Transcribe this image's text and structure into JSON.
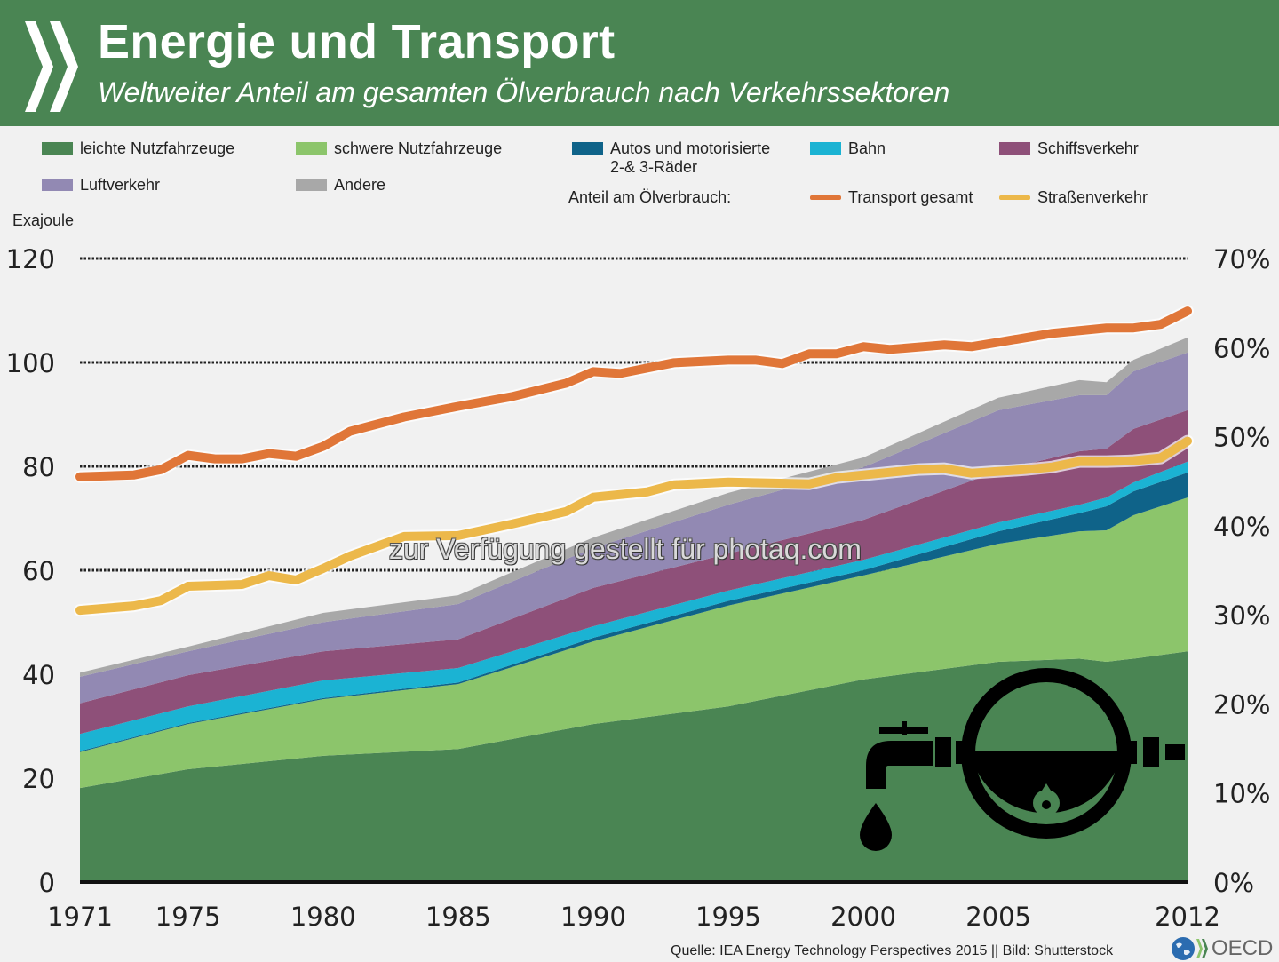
{
  "header": {
    "title": "Energie und Transport",
    "subtitle": "Weltweiter Anteil am gesamten Ölverbrauch nach Verkehrssektoren"
  },
  "legend": {
    "areas": [
      {
        "label": "leichte Nutzfahrzeuge",
        "color": "#4a8553"
      },
      {
        "label": "schwere Nutzfahrzeuge",
        "color": "#8cc56b"
      },
      {
        "label": "Autos und motorisierte",
        "label2": "2-& 3-Räder",
        "color": "#0f6389"
      },
      {
        "label": "Bahn",
        "color": "#1bb3d3"
      },
      {
        "label": "Schiffsverkehr",
        "color": "#8e5079"
      },
      {
        "label": "Luftverkehr",
        "color": "#9289b3"
      },
      {
        "label": "Andere",
        "color": "#a8a8a8"
      }
    ],
    "share_note": "Anteil am Ölverbrauch:",
    "lines": [
      {
        "label": "Transport gesamt",
        "color": "#e07638"
      },
      {
        "label": "Straßenverkehr",
        "color": "#ecb84a"
      }
    ]
  },
  "axis_title_left": "Exajoule",
  "watermark": "zur Verfügung gestellt für photaq.com",
  "footer": {
    "source": "Quelle: IEA Energy Technology Perspectives 2015 || Bild: Shutterstock",
    "logo_text": "OECD"
  },
  "chart_data": {
    "type": "area",
    "stacked": true,
    "title": "Energie und Transport",
    "subtitle": "Weltweiter Anteil am gesamten Ölverbrauch nach Verkehrssektoren",
    "xlabel": "",
    "ylabel": "Exajoule",
    "ylim": [
      0,
      120
    ],
    "y_ticks": [
      0,
      20,
      40,
      60,
      80,
      100,
      120
    ],
    "y2label": "Anteil am Ölverbrauch",
    "y2lim": [
      0,
      70
    ],
    "y2_ticks": [
      "0%",
      "10%",
      "20%",
      "30%",
      "40%",
      "50%",
      "60%",
      "70%"
    ],
    "x_tick_labels": [
      "1971",
      "1975",
      "1980",
      "1985",
      "1990",
      "1995",
      "2000",
      "2005",
      "2012"
    ],
    "grid": "dotted horizontal at 60, 80, 100, 120",
    "legend_position": "top",
    "x": [
      1971,
      1975,
      1980,
      1985,
      1990,
      1995,
      2000,
      2005,
      2008,
      2009,
      2010,
      2012
    ],
    "series": [
      {
        "name": "leichte Nutzfahrzeuge",
        "axis": "left",
        "values": [
          18.1,
          21.7,
          24.3,
          25.6,
          30.4,
          33.8,
          39.0,
          42.4,
          43.0,
          42.4,
          43.0,
          44.4
        ]
      },
      {
        "name": "schwere Nutzfahrzeuge",
        "axis": "left",
        "values": [
          6.9,
          8.7,
          10.9,
          12.5,
          15.9,
          19.4,
          20.0,
          22.7,
          24.5,
          25.3,
          27.6,
          29.6
        ]
      },
      {
        "name": "Autos und motorisierte 2-& 3-Räder",
        "axis": "left",
        "values": [
          0.2,
          0.2,
          0.2,
          0.3,
          0.7,
          0.9,
          1.0,
          2.4,
          3.5,
          4.6,
          4.6,
          4.8
        ]
      },
      {
        "name": "Bahn",
        "axis": "left",
        "values": [
          3.3,
          3.2,
          3.4,
          2.8,
          2.2,
          2.0,
          2.0,
          1.7,
          1.6,
          1.7,
          1.7,
          2.1
        ]
      },
      {
        "name": "Schiffsverkehr",
        "axis": "left",
        "values": [
          5.9,
          6.0,
          5.6,
          5.5,
          7.4,
          7.1,
          7.7,
          9.9,
          10.3,
          9.4,
          10.3,
          9.9
        ]
      },
      {
        "name": "Luftverkehr",
        "axis": "left",
        "values": [
          5.1,
          4.6,
          5.6,
          6.8,
          7.7,
          9.4,
          10.1,
          11.7,
          10.8,
          10.3,
          11.1,
          11.1
        ]
      },
      {
        "name": "Andere",
        "axis": "left",
        "values": [
          0.8,
          0.9,
          1.8,
          1.7,
          2.0,
          2.3,
          1.9,
          2.4,
          2.9,
          2.5,
          2.2,
          2.9
        ]
      }
    ],
    "lines": [
      {
        "name": "Transport gesamt",
        "axis": "right",
        "unit": "%",
        "x": [
          1971,
          1973,
          1974,
          1975,
          1976,
          1977,
          1978,
          1979,
          1980,
          1981,
          1983,
          1985,
          1987,
          1989,
          1990,
          1991,
          1993,
          1995,
          1996,
          1997,
          1998,
          1999,
          2000,
          2001,
          2003,
          2004,
          2005,
          2007,
          2009,
          2010,
          2011,
          2012
        ],
        "values": [
          45.5,
          45.7,
          46.3,
          47.9,
          47.5,
          47.5,
          48.1,
          47.8,
          48.9,
          50.6,
          52.2,
          53.4,
          54.5,
          56.0,
          57.3,
          57.1,
          58.3,
          58.6,
          58.6,
          58.2,
          59.3,
          59.3,
          60.1,
          59.8,
          60.3,
          60.1,
          60.6,
          61.6,
          62.2,
          62.2,
          62.6,
          64.1
        ]
      },
      {
        "name": "Straßenverkehr",
        "axis": "right",
        "unit": "%",
        "x": [
          1971,
          1973,
          1974,
          1975,
          1977,
          1978,
          1979,
          1980,
          1981,
          1983,
          1985,
          1987,
          1989,
          1990,
          1992,
          1993,
          1995,
          1998,
          1999,
          2000,
          2002,
          2003,
          2004,
          2006,
          2007,
          2008,
          2009,
          2010,
          2011,
          2012
        ],
        "values": [
          30.5,
          31.0,
          31.6,
          33.2,
          33.4,
          34.4,
          33.9,
          35.2,
          36.6,
          38.8,
          38.9,
          40.2,
          41.6,
          43.2,
          43.8,
          44.6,
          44.9,
          44.7,
          45.4,
          45.7,
          46.3,
          46.4,
          45.9,
          46.3,
          46.6,
          47.2,
          47.2,
          47.3,
          47.6,
          49.5
        ]
      }
    ]
  }
}
